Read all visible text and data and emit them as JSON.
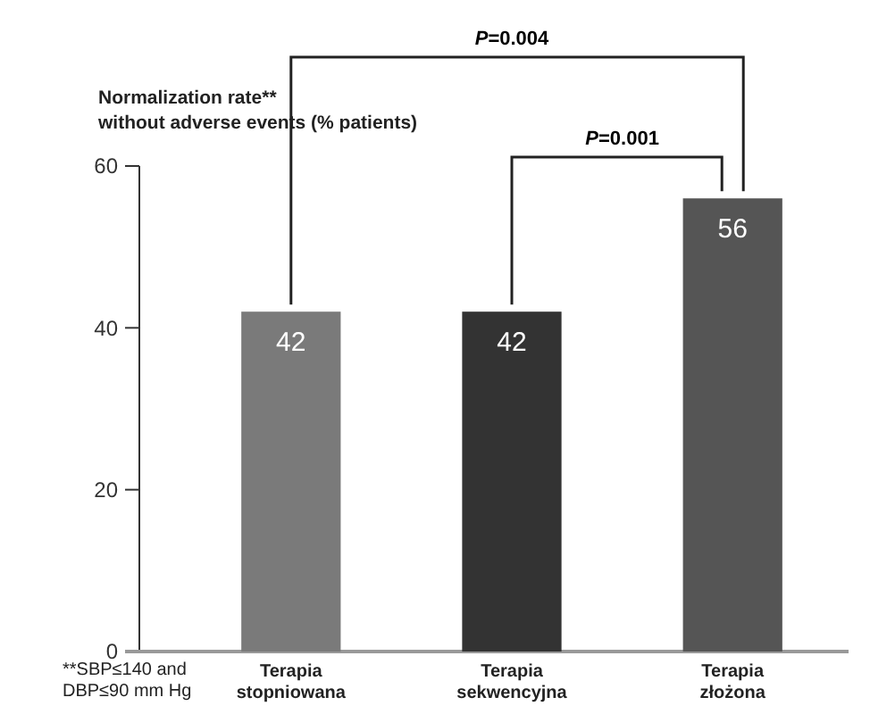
{
  "chart_data": {
    "type": "bar",
    "ylabel": "Normalization rate** without adverse events (% patients)",
    "categories": [
      "Terapia stopniowana",
      "Terapia sekwencyjna",
      "Terapia złożona"
    ],
    "values": [
      42,
      42,
      56
    ],
    "colors": [
      "#7a7a7a",
      "#333333",
      "#555555"
    ],
    "ylim": [
      0,
      60
    ],
    "yticks": [
      0,
      20,
      40,
      60
    ],
    "grid": false,
    "data_labels": true,
    "annotations": [
      "P=0.004",
      "P=0.001",
      "**SBP≤140 and DBP≤90 mm Hg"
    ]
  }
}
